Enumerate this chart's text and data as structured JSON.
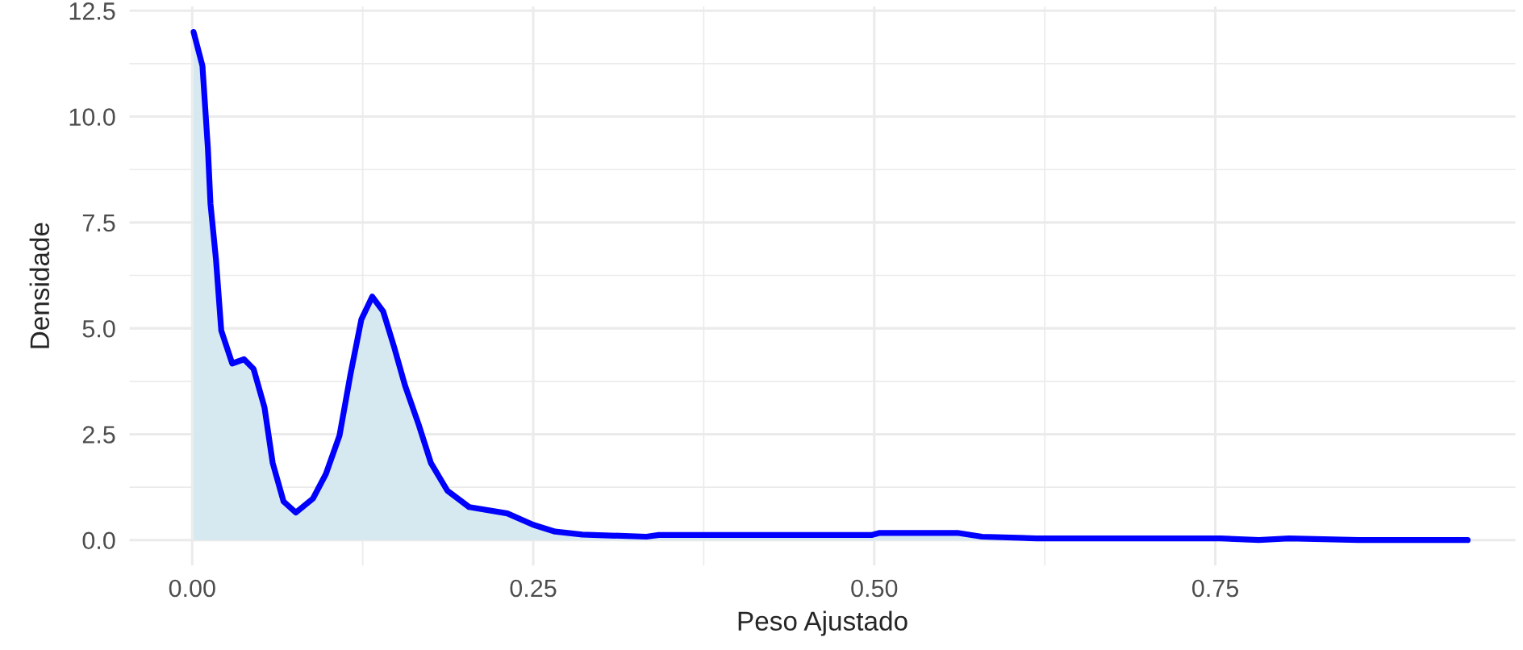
{
  "chart_data": {
    "type": "area",
    "xlabel": "Peso Ajustado",
    "ylabel": "Densidade",
    "x": [
      0.001,
      0.0075,
      0.0115,
      0.0134,
      0.0174,
      0.0213,
      0.0293,
      0.038,
      0.045,
      0.053,
      0.059,
      0.067,
      0.076,
      0.0885,
      0.098,
      0.108,
      0.116,
      0.124,
      0.132,
      0.14,
      0.148,
      0.156,
      0.166,
      0.175,
      0.187,
      0.203,
      0.231,
      0.25,
      0.266,
      0.286,
      0.333,
      0.342,
      0.498,
      0.504,
      0.561,
      0.579,
      0.619,
      0.754,
      0.782,
      0.804,
      0.855,
      0.935
    ],
    "series": [
      {
        "color": "#0000ff",
        "values": [
          12.0,
          11.2,
          9.25,
          7.94,
          6.64,
          4.95,
          4.17,
          4.27,
          4.04,
          3.13,
          1.82,
          0.91,
          0.65,
          0.98,
          1.56,
          2.47,
          3.91,
          5.21,
          5.75,
          5.4,
          4.56,
          3.65,
          2.73,
          1.82,
          1.17,
          0.78,
          0.63,
          0.36,
          0.2,
          0.13,
          0.08,
          0.12,
          0.12,
          0.17,
          0.17,
          0.08,
          0.04,
          0.04,
          0.0,
          0.04,
          0.0,
          0.0
        ]
      }
    ],
    "colors": [
      "#d6e9f1"
    ],
    "xlim": [
      -0.046,
      0.97
    ],
    "ylim": [
      -0.6,
      12.6
    ],
    "xticks": [
      {
        "value": 0,
        "label": "0.00"
      },
      {
        "value": 0.25,
        "label": "0.25"
      },
      {
        "value": 0.5,
        "label": "0.50"
      },
      {
        "value": 0.75,
        "label": "0.75"
      }
    ],
    "yticks": [
      {
        "value": 0,
        "label": "0.0"
      },
      {
        "value": 2.5,
        "label": "2.5"
      },
      {
        "value": 5,
        "label": "5.0"
      },
      {
        "value": 7.5,
        "label": "7.5"
      },
      {
        "value": 10,
        "label": "10.0"
      },
      {
        "value": 12.5,
        "label": "12.5"
      }
    ],
    "grid": true,
    "line_style": "solid"
  }
}
